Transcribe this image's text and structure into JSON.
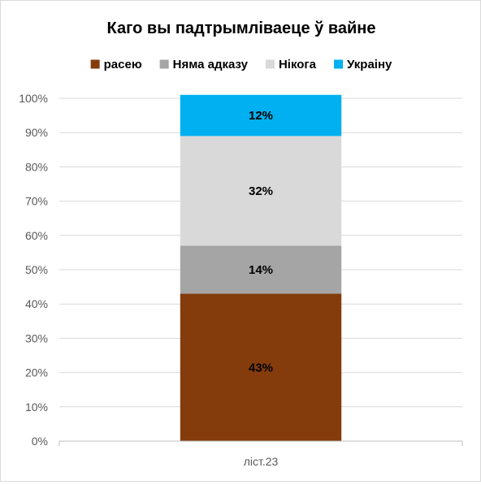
{
  "chart_data": {
    "type": "bar",
    "stacked": true,
    "title": "Каго вы падтрымліваеце ў вайне",
    "categories": [
      "ліст.23"
    ],
    "series": [
      {
        "name": "расею",
        "values": [
          43
        ],
        "label": "43%",
        "color": "#843C0C"
      },
      {
        "name": "Няма адказу",
        "values": [
          14
        ],
        "label": "14%",
        "color": "#A5A5A5"
      },
      {
        "name": "Нікога",
        "values": [
          32
        ],
        "label": "32%",
        "color": "#D9D9D9"
      },
      {
        "name": "Украіну",
        "values": [
          12
        ],
        "label": "12%",
        "color": "#00B0F0"
      }
    ],
    "ylim": [
      0,
      100
    ],
    "yticks": [
      "0%",
      "10%",
      "20%",
      "30%",
      "40%",
      "50%",
      "60%",
      "70%",
      "80%",
      "90%",
      "100%"
    ],
    "grid": true,
    "legend": "top"
  }
}
